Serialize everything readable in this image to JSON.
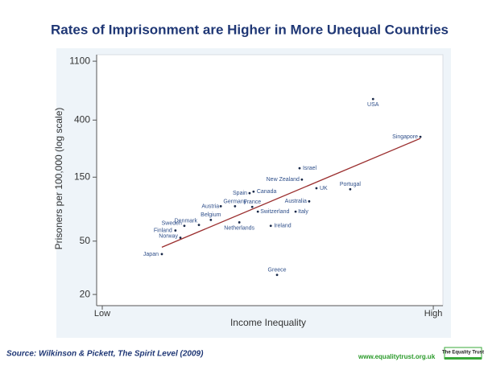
{
  "chart_data": {
    "type": "scatter",
    "title": "Rates of Imprisonment are Higher in More Unequal Countries",
    "xlabel": "Income Inequality",
    "ylabel": "Prisoners per 100,000 (log scale)",
    "y_scale": "log",
    "xlim": [
      -0.017,
      1.029
    ],
    "ylim": [
      16.5,
      1230
    ],
    "xticks": [
      {
        "value": 0,
        "label": "Low"
      },
      {
        "value": 1,
        "label": "High"
      }
    ],
    "yticks": [
      20,
      50,
      150,
      400,
      1100
    ],
    "color": "#1a2a4a",
    "series": [
      {
        "labels": [
          "Japan",
          "Norway",
          "Finland",
          "Sweden",
          "Denmark",
          "Belgium",
          "Austria",
          "Germany",
          "Netherlands",
          "France",
          "Switzerland",
          "Spain",
          "Canada",
          "Ireland",
          "Greece",
          "New Zealand",
          "Israel",
          "Australia",
          "Italy",
          "UK",
          "Portugal",
          "Singapore",
          "USA"
        ],
        "x": [
          0.18,
          0.236,
          0.221,
          0.248,
          0.292,
          0.328,
          0.358,
          0.401,
          0.414,
          0.453,
          0.47,
          0.445,
          0.457,
          0.509,
          0.528,
          0.603,
          0.596,
          0.625,
          0.584,
          0.647,
          0.749,
          0.961,
          0.818
        ],
        "values": [
          40,
          53,
          60,
          65,
          66,
          72,
          91,
          91,
          69,
          90,
          83,
          114,
          117,
          65,
          28,
          144,
          175,
          99,
          83,
          124,
          122,
          300,
          574
        ]
      }
    ],
    "trend_line": {
      "color": "#9b2f2f",
      "x": [
        0.18,
        0.961
      ],
      "values": [
        45,
        292
      ]
    },
    "source": "Source: Wilkinson & Pickett, The Spirit Level (2009)",
    "url": "www.equalitytrust.org.uk",
    "logo": "The Equality Trust"
  }
}
